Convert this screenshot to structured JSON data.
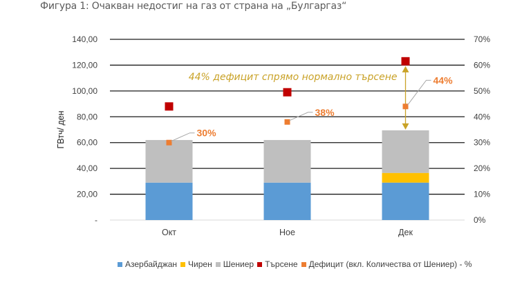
{
  "figure": {
    "title": "Фигура 1: Очакван недостиг на газ от страна на „Булгаргаз“"
  },
  "chart_data": {
    "type": "bar",
    "stacked": true,
    "title": "Фигура 1: Очакван недостиг на газ от страна на „Булгаргаз“",
    "categories": [
      "Окт",
      "Ное",
      "Дек"
    ],
    "ylabel": "ГВтч/ ден",
    "ylim": [
      0,
      140
    ],
    "y_ticks": [
      "-",
      "20,00",
      "40,00",
      "60,00",
      "80,00",
      "100,00",
      "120,00",
      "140,00"
    ],
    "y_tick_values": [
      0,
      20,
      40,
      60,
      80,
      100,
      120,
      140
    ],
    "y2lim": [
      0,
      70
    ],
    "y2_ticks": [
      "0%",
      "10%",
      "20%",
      "30%",
      "40%",
      "50%",
      "60%",
      "70%"
    ],
    "y2_tick_values": [
      0,
      10,
      20,
      30,
      40,
      50,
      60,
      70
    ],
    "grid": true,
    "legend_position": "bottom",
    "series": [
      {
        "name": "Азербайджан",
        "kind": "bar",
        "color": "#5b9bd5",
        "values": [
          29,
          29,
          29
        ]
      },
      {
        "name": "Чирен",
        "kind": "bar",
        "color": "#ffc000",
        "values": [
          0,
          0,
          7.5
        ]
      },
      {
        "name": "Шениер",
        "kind": "bar",
        "color": "#bfbfbf",
        "values": [
          33,
          33,
          33
        ]
      },
      {
        "name": "Търсене",
        "kind": "marker",
        "color": "#c00000",
        "values": [
          88,
          99,
          123
        ]
      },
      {
        "name": "Дефицит (вкл. Количества от Шениер) - %",
        "kind": "marker",
        "axis": "secondary",
        "color": "#ed7d31",
        "values": [
          30,
          38,
          44
        ],
        "labels": [
          "30%",
          "38%",
          "44%"
        ]
      }
    ],
    "annotation": {
      "text": "44% дефицит спрямо нормално търсене",
      "color": "#c9a227",
      "category": "Дек"
    }
  }
}
